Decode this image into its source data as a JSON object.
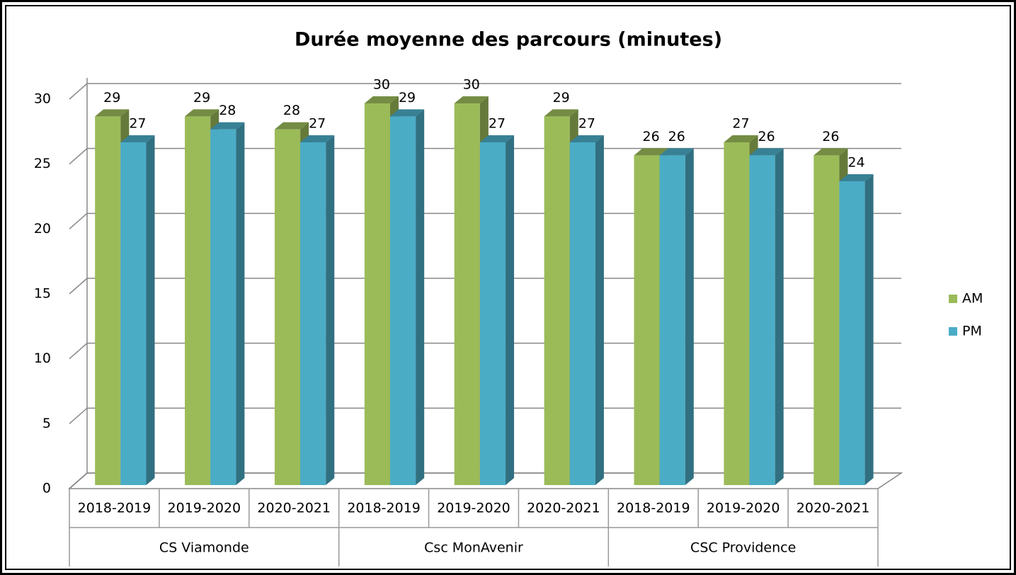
{
  "chart_data": {
    "type": "bar3d",
    "title": "Durée moyenne des parcours (minutes)",
    "categories": [
      "2018-2019",
      "2019-2020",
      "2020-2021",
      "2018-2019",
      "2019-2020",
      "2020-2021",
      "2018-2019",
      "2019-2020",
      "2020-2021"
    ],
    "category_groups": [
      "CS Viamonde",
      "Csc MonAvenir",
      "CSC Providence"
    ],
    "series": [
      {
        "name": "AM",
        "color": "#9bbb59",
        "values": [
          29,
          29,
          28,
          30,
          30,
          29,
          26,
          27,
          26
        ]
      },
      {
        "name": "PM",
        "color": "#4bacc6",
        "values": [
          27,
          28,
          27,
          29,
          27,
          27,
          26,
          26,
          24
        ]
      }
    ],
    "ylim": [
      0,
      30
    ],
    "yticks": [
      0,
      5,
      10,
      15,
      20,
      25,
      30
    ],
    "grid": true,
    "legend": "right"
  }
}
